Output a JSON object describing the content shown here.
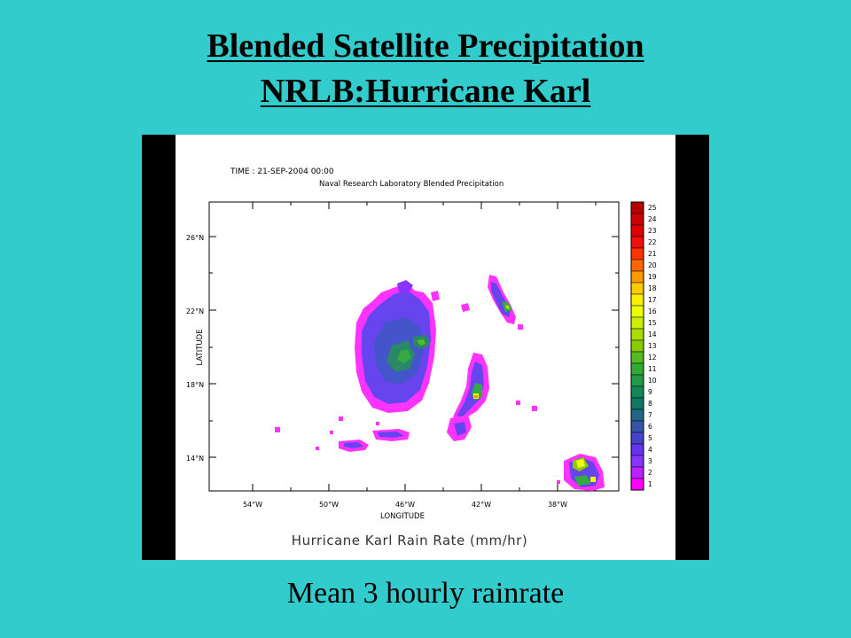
{
  "slide": {
    "title_line1": "Blended Satellite Precipitation",
    "title_line2": "NRLB:Hurricane Karl",
    "caption": "Mean 3 hourly rainrate"
  },
  "map": {
    "time_label": "TIME : 21-SEP-2004 00:00",
    "source_label": "Naval Research Laboratory Blended Precipitation",
    "xlabel": "LONGITUDE",
    "ylabel": "LATITUDE",
    "x_ticks": [
      "54°W",
      "50°W",
      "46°W",
      "42°W",
      "38°W"
    ],
    "y_ticks": [
      "26°N",
      "22°N",
      "18°N",
      "14°N"
    ],
    "bottom_title": "Hurricane Karl Rain Rate (mm/hr)",
    "colorbar_labels": [
      "25",
      "24",
      "23",
      "22",
      "21",
      "20",
      "19",
      "18",
      "17",
      "16",
      "15",
      "14",
      "13",
      "12",
      "11",
      "10",
      "9",
      "8",
      "7",
      "6",
      "5",
      "4",
      "3",
      "2",
      "1"
    ],
    "colorbar_colors": [
      "#b40000",
      "#cc0000",
      "#e00000",
      "#f01010",
      "#ff3300",
      "#ff6600",
      "#ff9900",
      "#ffcc00",
      "#ffee00",
      "#eeff00",
      "#ccee00",
      "#aadd00",
      "#88cc00",
      "#55bb22",
      "#33aa33",
      "#229944",
      "#118855",
      "#117766",
      "#226688",
      "#3355aa",
      "#4444cc",
      "#6633ee",
      "#8833ff",
      "#bb22ff",
      "#ff00ff"
    ]
  }
}
